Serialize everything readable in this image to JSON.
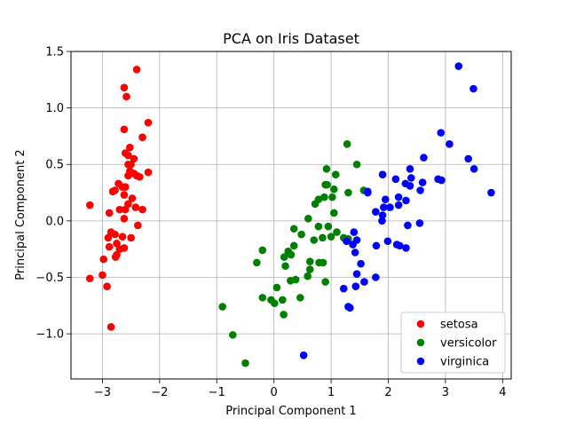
{
  "chart_data": {
    "type": "scatter",
    "title": "PCA on Iris Dataset",
    "xlabel": "Principal Component 1",
    "ylabel": "Principal Component 2",
    "xlim": [
      -3.55,
      4.15
    ],
    "ylim": [
      -1.4,
      1.5
    ],
    "xticks": [
      -3,
      -2,
      -1,
      0,
      1,
      2,
      3,
      4
    ],
    "yticks": [
      -1.0,
      -0.5,
      0.0,
      0.5,
      1.0,
      1.5
    ],
    "xtick_labels": [
      "−3",
      "−2",
      "−1",
      "0",
      "1",
      "2",
      "3",
      "4"
    ],
    "ytick_labels": [
      "−1.0",
      "−0.5",
      "0.0",
      "0.5",
      "1.0",
      "1.5"
    ],
    "grid": true,
    "legend_position": "lower-right",
    "series": [
      {
        "name": "setosa",
        "color": "#ff0000",
        "points": [
          [
            -2.4,
            1.34
          ],
          [
            -2.62,
            1.18
          ],
          [
            -2.58,
            1.1
          ],
          [
            -2.2,
            0.87
          ],
          [
            -2.62,
            0.81
          ],
          [
            -2.52,
            0.65
          ],
          [
            -2.6,
            0.6
          ],
          [
            -2.55,
            0.58
          ],
          [
            -2.3,
            0.74
          ],
          [
            -2.45,
            0.55
          ],
          [
            -2.55,
            0.5
          ],
          [
            -2.5,
            0.5
          ],
          [
            -2.72,
            0.33
          ],
          [
            -2.78,
            0.27
          ],
          [
            -2.82,
            0.26
          ],
          [
            -2.65,
            0.3
          ],
          [
            -2.55,
            0.4
          ],
          [
            -2.45,
            0.42
          ],
          [
            -2.4,
            0.4
          ],
          [
            -2.35,
            0.39
          ],
          [
            -2.2,
            0.43
          ],
          [
            -2.52,
            0.44
          ],
          [
            -2.6,
            0.3
          ],
          [
            -2.62,
            0.23
          ],
          [
            -2.48,
            0.2
          ],
          [
            -2.55,
            0.15
          ],
          [
            -2.42,
            0.12
          ],
          [
            -2.3,
            0.1
          ],
          [
            -2.6,
            0.1
          ],
          [
            -2.7,
            0.1
          ],
          [
            -2.88,
            0.07
          ],
          [
            -2.62,
            0.02
          ],
          [
            -2.38,
            -0.04
          ],
          [
            -3.22,
            0.14
          ],
          [
            -2.85,
            -0.1
          ],
          [
            -2.78,
            -0.12
          ],
          [
            -2.65,
            -0.14
          ],
          [
            -2.5,
            -0.15
          ],
          [
            -2.9,
            -0.15
          ],
          [
            -2.75,
            -0.2
          ],
          [
            -2.88,
            -0.23
          ],
          [
            -2.7,
            -0.25
          ],
          [
            -2.62,
            -0.24
          ],
          [
            -2.75,
            -0.3
          ],
          [
            -2.77,
            -0.32
          ],
          [
            -2.98,
            -0.34
          ],
          [
            -3.0,
            -0.48
          ],
          [
            -3.22,
            -0.51
          ],
          [
            -2.92,
            -0.58
          ],
          [
            -2.85,
            -0.94
          ]
        ]
      },
      {
        "name": "versicolor",
        "color": "#008000",
        "points": [
          [
            1.28,
            0.68
          ],
          [
            1.45,
            0.5
          ],
          [
            0.92,
            0.46
          ],
          [
            1.57,
            0.27
          ],
          [
            1.08,
            0.41
          ],
          [
            0.93,
            0.32
          ],
          [
            0.9,
            0.32
          ],
          [
            1.3,
            0.25
          ],
          [
            1.05,
            0.28
          ],
          [
            0.72,
            0.15
          ],
          [
            0.78,
            0.19
          ],
          [
            0.88,
            0.21
          ],
          [
            1.02,
            0.21
          ],
          [
            1.05,
            0.07
          ],
          [
            0.6,
            0.02
          ],
          [
            0.95,
            -0.05
          ],
          [
            0.78,
            -0.05
          ],
          [
            1.0,
            -0.14
          ],
          [
            0.85,
            -0.15
          ],
          [
            0.7,
            -0.17
          ],
          [
            1.22,
            -0.15
          ],
          [
            1.3,
            -0.16
          ],
          [
            1.1,
            -0.1
          ],
          [
            0.48,
            -0.12
          ],
          [
            0.35,
            -0.07
          ],
          [
            -0.2,
            -0.26
          ],
          [
            0.35,
            -0.22
          ],
          [
            0.25,
            -0.27
          ],
          [
            0.18,
            -0.32
          ],
          [
            0.3,
            -0.3
          ],
          [
            -0.3,
            -0.37
          ],
          [
            0.2,
            -0.4
          ],
          [
            0.63,
            -0.36
          ],
          [
            0.63,
            -0.43
          ],
          [
            0.79,
            -0.37
          ],
          [
            0.86,
            -0.37
          ],
          [
            0.59,
            -0.49
          ],
          [
            0.29,
            -0.53
          ],
          [
            0.38,
            -0.52
          ],
          [
            0.05,
            -0.59
          ],
          [
            0.9,
            -0.54
          ],
          [
            -0.2,
            -0.68
          ],
          [
            -0.05,
            -0.7
          ],
          [
            0.15,
            -0.7
          ],
          [
            0.46,
            -0.68
          ],
          [
            0.01,
            -0.73
          ],
          [
            0.17,
            -0.83
          ],
          [
            -0.9,
            -0.76
          ],
          [
            -0.72,
            -1.01
          ],
          [
            -0.5,
            -1.26
          ]
        ]
      },
      {
        "name": "virginica",
        "color": "#0000ff",
        "points": [
          [
            3.23,
            1.37
          ],
          [
            3.49,
            1.17
          ],
          [
            2.92,
            0.78
          ],
          [
            3.07,
            0.68
          ],
          [
            2.62,
            0.56
          ],
          [
            3.4,
            0.55
          ],
          [
            3.5,
            0.46
          ],
          [
            2.38,
            0.46
          ],
          [
            1.9,
            0.41
          ],
          [
            2.13,
            0.37
          ],
          [
            2.4,
            0.38
          ],
          [
            2.87,
            0.37
          ],
          [
            2.93,
            0.36
          ],
          [
            2.6,
            0.34
          ],
          [
            2.3,
            0.33
          ],
          [
            2.38,
            0.31
          ],
          [
            2.56,
            0.27
          ],
          [
            3.8,
            0.25
          ],
          [
            1.64,
            0.25
          ],
          [
            2.18,
            0.21
          ],
          [
            2.31,
            0.18
          ],
          [
            1.95,
            0.19
          ],
          [
            2.18,
            0.14
          ],
          [
            1.92,
            0.12
          ],
          [
            1.78,
            0.08
          ],
          [
            1.9,
            0.05
          ],
          [
            2.34,
            -0.04
          ],
          [
            2.55,
            -0.02
          ],
          [
            1.4,
            -0.1
          ],
          [
            1.27,
            -0.18
          ],
          [
            1.45,
            -0.17
          ],
          [
            1.99,
            -0.18
          ],
          [
            2.15,
            -0.21
          ],
          [
            2.2,
            -0.22
          ],
          [
            1.79,
            -0.22
          ],
          [
            2.31,
            -0.24
          ],
          [
            1.38,
            -0.21
          ],
          [
            1.42,
            -0.28
          ],
          [
            1.52,
            -0.38
          ],
          [
            1.45,
            -0.47
          ],
          [
            1.78,
            -0.5
          ],
          [
            1.58,
            -0.54
          ],
          [
            1.22,
            -0.6
          ],
          [
            1.43,
            -0.58
          ],
          [
            1.3,
            -0.76
          ],
          [
            1.33,
            -0.77
          ],
          [
            1.89,
            0.0
          ],
          [
            0.52,
            -1.19
          ],
          [
            1.64,
            0.26
          ],
          [
            2.03,
            0.12
          ]
        ]
      }
    ]
  }
}
